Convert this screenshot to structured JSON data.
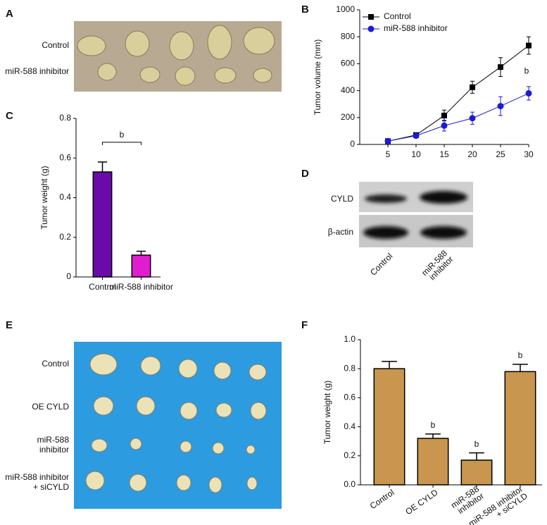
{
  "panels": {
    "A": {
      "letter": "A",
      "labels": [
        "Control",
        "miR-588 inhibitor"
      ]
    },
    "D": {
      "letter": "D",
      "rows": [
        "CYLD",
        "β-actin"
      ],
      "lanes": [
        [
          "Control"
        ],
        [
          "miR-588",
          "inhibitor"
        ]
      ]
    },
    "E": {
      "letter": "E",
      "labels": [
        [
          "Control"
        ],
        [
          "OE CYLD"
        ],
        [
          "miR-588",
          "inhibitor"
        ],
        [
          "miR-588 inhibitor",
          "+ siCYLD"
        ]
      ]
    }
  },
  "chart_data": [
    {
      "type": "line",
      "panel": "B",
      "ylabel": "Tumor volume (mm)",
      "x": [
        5,
        10,
        15,
        20,
        25,
        30
      ],
      "xlim": [
        0,
        30
      ],
      "xticks": [
        5,
        10,
        15,
        20,
        25,
        30
      ],
      "ylim": [
        0,
        1000
      ],
      "yticks": [
        0,
        200,
        400,
        600,
        800,
        1000
      ],
      "series": [
        {
          "name": "Control",
          "color": "#000000",
          "marker": "square",
          "values": [
            25,
            70,
            215,
            425,
            575,
            735
          ],
          "errors": [
            10,
            10,
            40,
            45,
            70,
            65
          ]
        },
        {
          "name": "miR-588 inhibitor",
          "color": "#1a1adc",
          "marker": "circle",
          "values": [
            25,
            65,
            140,
            195,
            285,
            380
          ],
          "errors": [
            10,
            10,
            40,
            45,
            70,
            50
          ]
        }
      ],
      "significance": [
        null,
        null,
        null,
        null,
        null,
        "b"
      ],
      "legend": "upper-left"
    },
    {
      "type": "bar",
      "panel": "C",
      "ylabel": "Tumor weight (g)",
      "categories": [
        "Control",
        "miR-588 inhibitor"
      ],
      "values": [
        0.53,
        0.11
      ],
      "errors": [
        0.05,
        0.02
      ],
      "colors": [
        "#6a0aa8",
        "#e01ed0"
      ],
      "ylim": [
        0,
        0.8
      ],
      "yticks": [
        0,
        0.2,
        0.4,
        0.6,
        0.8
      ],
      "comparison_label": "b"
    },
    {
      "type": "bar",
      "panel": "F",
      "ylabel": "Tumor weight (g)",
      "categories": [
        [
          "Control"
        ],
        [
          "OE CYLD"
        ],
        [
          "miR-588",
          "inhibitor"
        ],
        [
          "miR-588 inhibitor",
          "+ siCYLD"
        ]
      ],
      "values": [
        0.8,
        0.32,
        0.17,
        0.78
      ],
      "errors": [
        0.05,
        0.03,
        0.05,
        0.05
      ],
      "colors": [
        "#c8964e",
        "#c8964e",
        "#c8964e",
        "#c8964e"
      ],
      "ylim": [
        0,
        1.0
      ],
      "yticks": [
        {
          "value": 0,
          "label": "0.0"
        },
        0.2,
        0.4,
        0.6,
        0.8,
        {
          "value": 1.0,
          "label": "1.0"
        }
      ],
      "significance": [
        null,
        "b",
        "b",
        "b"
      ]
    }
  ]
}
